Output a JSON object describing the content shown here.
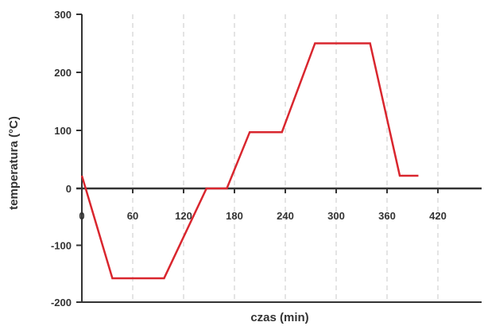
{
  "chart_data": {
    "type": "line",
    "title": "",
    "xlabel": "czas (min)",
    "ylabel": "temperatura (°C)",
    "xlim": [
      0,
      460
    ],
    "ylim": [
      -200,
      300
    ],
    "x_ticks": [
      0,
      60,
      120,
      180,
      240,
      300,
      360,
      420
    ],
    "x_tick_labels": [
      "0",
      "60",
      "120",
      "180",
      "240",
      "300",
      "360",
      "420"
    ],
    "y_ticks": [
      300,
      200,
      100,
      0,
      -100,
      -200
    ],
    "y_tick_labels": [
      "300",
      "200",
      "100",
      "0",
      "-100",
      "-200"
    ],
    "grid": "vertical dashed",
    "colors": {
      "line": "#d9262e",
      "axis": "#333333",
      "grid": "#c8c8c8"
    },
    "series": [
      {
        "x": [
          0,
          36,
          97,
          147,
          171,
          198,
          236,
          275,
          340,
          375,
          397
        ],
        "y": [
          22,
          -158,
          -158,
          0,
          0,
          97,
          97,
          250,
          250,
          22,
          22
        ]
      }
    ]
  }
}
